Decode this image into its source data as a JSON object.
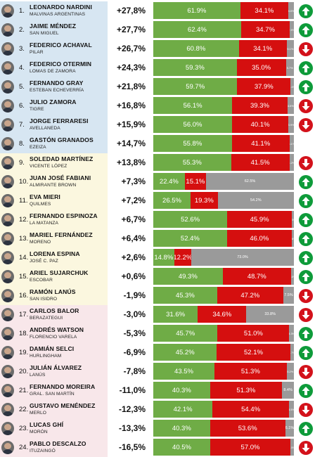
{
  "rows": [
    {
      "rank": "1.",
      "name": "LEONARDO NARDINI",
      "muni": "MALVINAS ARGENTINAS",
      "change": "+27,8%",
      "green": 61.9,
      "red": 34.1,
      "other": 4.0,
      "green_label": "61.9%",
      "red_label": "34.1%",
      "other_label": "4.0%",
      "trend": "up",
      "group": "blue"
    },
    {
      "rank": "2.",
      "name": "JAIME MÉNDEZ",
      "muni": "SAN MIGUEL",
      "change": "+27,7%",
      "green": 62.4,
      "red": 34.7,
      "other": 2.9,
      "green_label": "62.4%",
      "red_label": "34.7%",
      "other_label": "2.9%",
      "trend": "up",
      "group": "blue"
    },
    {
      "rank": "3.",
      "name": "FEDERICO ACHAVAL",
      "muni": "PILAR",
      "change": "+26,7%",
      "green": 60.8,
      "red": 34.1,
      "other": 5.1,
      "green_label": "60.8%",
      "red_label": "34.1%",
      "other_label": "5.1%",
      "trend": "down",
      "group": "blue"
    },
    {
      "rank": "4.",
      "name": "FEDERICO OTERMIN",
      "muni": "LOMAS DE ZAMORA",
      "change": "+24,3%",
      "green": 59.3,
      "red": 35.0,
      "other": 5.7,
      "green_label": "59.3%",
      "red_label": "35.0%",
      "other_label": "5.7%",
      "trend": "up",
      "group": "blue"
    },
    {
      "rank": "5.",
      "name": "FERNANDO GRAY",
      "muni": "ESTEBAN ECHEVERRÍA",
      "change": "+21,8%",
      "green": 59.7,
      "red": 37.9,
      "other": 2.4,
      "green_label": "59.7%",
      "red_label": "37.9%",
      "other_label": "2.4%",
      "trend": "up",
      "group": "blue"
    },
    {
      "rank": "6.",
      "name": "JULIO ZAMORA",
      "muni": "TIGRE",
      "change": "+16,8%",
      "green": 56.1,
      "red": 39.3,
      "other": 4.6,
      "green_label": "56.1%",
      "red_label": "39.3%",
      "other_label": "4.6%",
      "trend": "down",
      "group": "blue"
    },
    {
      "rank": "7.",
      "name": "JORGE FERRARESI",
      "muni": "AVELLANEDA",
      "change": "+15,9%",
      "green": 56.0,
      "red": 40.1,
      "other": 3.9,
      "green_label": "56.0%",
      "red_label": "40.1%",
      "other_label": "3.9%",
      "trend": "down",
      "group": "blue"
    },
    {
      "rank": "8.",
      "name": "GASTÓN GRANADOS",
      "muni": "EZEIZA",
      "change": "+14,7%",
      "green": 55.8,
      "red": 41.1,
      "other": 3.1,
      "green_label": "55.8%",
      "red_label": "41.1%",
      "other_label": "3.1%",
      "trend": "none",
      "group": "blue"
    },
    {
      "rank": "9.",
      "name": "SOLEDAD MARTÍNEZ",
      "muni": "VICENTE LÓPEZ",
      "change": "+13,8%",
      "green": 55.3,
      "red": 41.5,
      "other": 3.2,
      "green_label": "55.3%",
      "red_label": "41.5%",
      "other_label": "3.2%",
      "trend": "down",
      "group": "yellow"
    },
    {
      "rank": "10.",
      "name": "JUAN JOSÉ FABIANI",
      "muni": "ALMIRANTE BROWN",
      "change": "+7,3%",
      "green": 22.4,
      "red": 15.1,
      "other": 62.5,
      "green_label": "22.4%",
      "red_label": "15.1%",
      "other_label": "62.5%",
      "trend": "up",
      "group": "yellow"
    },
    {
      "rank": "11.",
      "name": "EVA MIERI",
      "muni": "QUILMES",
      "change": "+7,2%",
      "green": 26.5,
      "red": 19.3,
      "other": 54.2,
      "green_label": "26.5%",
      "red_label": "19.3%",
      "other_label": "54.2%",
      "trend": "up",
      "group": "yellow"
    },
    {
      "rank": "12.",
      "name": "FERNANDO ESPINOZA",
      "muni": "LA MATANZA",
      "change": "+6,7%",
      "green": 52.6,
      "red": 45.9,
      "other": 1.5,
      "green_label": "52.6%",
      "red_label": "45.9%",
      "other_label": "1.5%",
      "trend": "up",
      "group": "yellow"
    },
    {
      "rank": "13.",
      "name": "MARIEL FERNÁNDEZ",
      "muni": "MORENO",
      "change": "+6,4%",
      "green": 52.4,
      "red": 46.0,
      "other": 1.6,
      "green_label": "52.4%",
      "red_label": "46.0%",
      "other_label": "1.6%",
      "trend": "up",
      "group": "yellow"
    },
    {
      "rank": "14.",
      "name": "LORENA ESPINA",
      "muni": "JOSÉ C. PAZ",
      "change": "+2,6%",
      "green": 14.8,
      "red": 12.2,
      "other": 73.0,
      "green_label": "14.8%",
      "red_label": "12.2%",
      "other_label": "73.0%",
      "trend": "up",
      "group": "yellow"
    },
    {
      "rank": "15.",
      "name": "ARIEL SUJARCHUK",
      "muni": "ESCOBAR",
      "change": "+0,6%",
      "green": 49.3,
      "red": 48.7,
      "other": 2.0,
      "green_label": "49.3%",
      "red_label": "48.7%",
      "other_label": "2.0%",
      "trend": "up",
      "group": "yellow"
    },
    {
      "rank": "16.",
      "name": "RAMÓN LANÚS",
      "muni": "SAN ISIDRO",
      "change": "-1,9%",
      "green": 45.3,
      "red": 47.2,
      "other": 7.5,
      "green_label": "45.3%",
      "red_label": "47.2%",
      "other_label": "7.5%",
      "trend": "down",
      "group": "yellow"
    },
    {
      "rank": "17.",
      "name": "CARLOS BALOR",
      "muni": "BERAZATEGUI",
      "change": "-3,0%",
      "green": 31.6,
      "red": 34.6,
      "other": 33.8,
      "green_label": "31.6%",
      "red_label": "34.6%",
      "other_label": "33.8%",
      "trend": "down",
      "group": "pink"
    },
    {
      "rank": "18.",
      "name": "ANDRÉS WATSON",
      "muni": "FLORENCIO VARELA",
      "change": "-5,3%",
      "green": 45.7,
      "red": 51.0,
      "other": 3.3,
      "green_label": "45.7%",
      "red_label": "51.0%",
      "other_label": "3.3%",
      "trend": "up",
      "group": "pink"
    },
    {
      "rank": "19.",
      "name": "DAMIÁN SELCI",
      "muni": "HURLINGHAM",
      "change": "-6,9%",
      "green": 45.2,
      "red": 52.1,
      "other": 2.7,
      "green_label": "45.2%",
      "red_label": "52.1%",
      "other_label": "2.7%",
      "trend": "up",
      "group": "pink"
    },
    {
      "rank": "20.",
      "name": "JULIÁN ÁLVAREZ",
      "muni": "LANÚS",
      "change": "-7,8%",
      "green": 43.5,
      "red": 51.3,
      "other": 5.2,
      "green_label": "43.5%",
      "red_label": "51.3%",
      "other_label": "5.2%",
      "trend": "down",
      "group": "pink"
    },
    {
      "rank": "21.",
      "name": "FERNANDO MOREIRA",
      "muni": "GRAL. SAN MARTÍN",
      "change": "-11,0%",
      "green": 40.3,
      "red": 51.3,
      "other": 8.4,
      "green_label": "40.3%",
      "red_label": "51.3%",
      "other_label": "8.4%",
      "trend": "up",
      "group": "pink"
    },
    {
      "rank": "22.",
      "name": "GUSTAVO MENÉNDEZ",
      "muni": "MERLO",
      "change": "-12,3%",
      "green": 42.1,
      "red": 54.4,
      "other": 3.5,
      "green_label": "42.1%",
      "red_label": "54.4%",
      "other_label": "3.5%",
      "trend": "down",
      "group": "pink"
    },
    {
      "rank": "23.",
      "name": "LUCAS GHÍ",
      "muni": "MORÓN",
      "change": "-13,3%",
      "green": 40.3,
      "red": 53.6,
      "other": 6.1,
      "green_label": "40.3%",
      "red_label": "53.6%",
      "other_label": "6.1%",
      "trend": "up",
      "group": "pink"
    },
    {
      "rank": "24.",
      "name": "PABLO DESCALZO",
      "muni": "ITUZAINGÓ",
      "change": "-16,5%",
      "green": 40.5,
      "red": 57.0,
      "other": 2.5,
      "green_label": "40.5%",
      "red_label": "57.0%",
      "other_label": "2.5%",
      "trend": "down",
      "group": "pink"
    }
  ],
  "colors": {
    "green": "#6fac46",
    "red": "#d50f0f",
    "other": "#9a9a9a",
    "up": "#0e9b3a",
    "down": "#d3121b",
    "group_blue": "#d7e6f2",
    "group_yellow": "#fbf7df",
    "group_pink": "#f8e7ea"
  },
  "icons": {
    "up": "arrow-up-icon",
    "down": "arrow-down-icon",
    "avatar": "avatar-icon"
  }
}
